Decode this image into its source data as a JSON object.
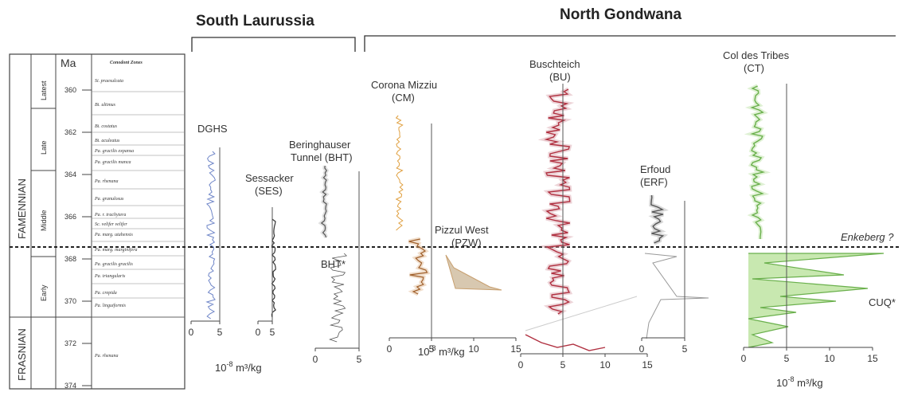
{
  "headers": {
    "south": "South Laurussia",
    "north": "North Gondwana"
  },
  "stratigraphy": {
    "stage": "FAMENNIAN",
    "stage2": "FRASNIAN",
    "substages": [
      "Latest",
      "Late",
      "Middle",
      "Early"
    ],
    "ma_label": "Ma",
    "zones_header": "Conodont Zones",
    "ma_ticks": [
      "360",
      "362",
      "364",
      "366",
      "368",
      "370",
      "372",
      "374"
    ],
    "zones": [
      "Si. praesulcata",
      "Bi. ultimus",
      "Bi. costatus",
      "Bi. aculeatus",
      "Pa. gracilis expansa",
      "Pa. gracilis manca",
      "Pa. rhenana",
      "Pa. granulosus",
      "Pa. r. trachytera",
      "Sc. velifer velifer",
      "Pa. marg. utahensis",
      "Pa. marg. marginifera",
      "Pa. gracilis gracilis",
      "Pa. triangularis",
      "Pa. crepida",
      "Pa. linguiformis",
      "Pa. rhenana"
    ]
  },
  "sections": {
    "dghs": "DGHS",
    "ses": [
      "Sessacker",
      "(SES)"
    ],
    "bht": [
      "Beringhauser",
      "Tunnel (BHT)"
    ],
    "bht_star": "BHT*",
    "cm": [
      "Corona Mizziu",
      "(CM)"
    ],
    "pzw": [
      "Pizzul West",
      "(PZW)"
    ],
    "bu": [
      "Buschteich",
      "(BU)"
    ],
    "erf": [
      "Erfoud",
      "(ERF)"
    ],
    "ct": [
      "Col des Tribes",
      "(CT)"
    ],
    "cuq": "CUQ*",
    "enkeberg": "Enkeberg ?"
  },
  "axis_ticks": {
    "a1": [
      "0",
      "5"
    ],
    "a2": [
      "0",
      "5"
    ],
    "a3": [
      "0",
      "5"
    ],
    "b1": [
      "0",
      "5",
      "10",
      "15"
    ],
    "b2": [
      "0",
      "5",
      "10",
      "15"
    ],
    "b3": [
      "0",
      "5"
    ],
    "b4": [
      "0",
      "5",
      "10",
      "15"
    ]
  },
  "units": {
    "left": "10",
    "mid": "10",
    "right": "10",
    "exp": "-8",
    "tail": " m³/kg"
  },
  "colors": {
    "dghs": "#6f86c8",
    "ses": "#333333",
    "bht": "#555555",
    "cm": "#e0a040",
    "pzw": "#c8a070",
    "bu": "#b03040",
    "erf": "#555555",
    "ct": "#6ab04c"
  }
}
